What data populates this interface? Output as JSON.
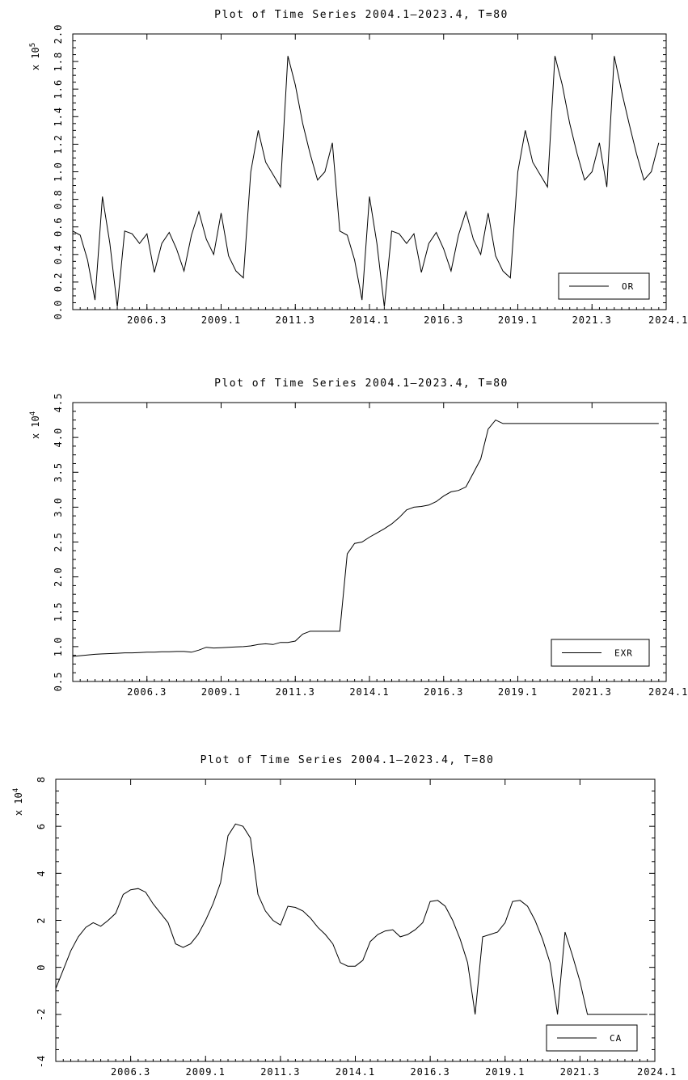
{
  "chart_data": [
    {
      "type": "line",
      "title": "Plot of Time Series 2004.1—2023.4, T=80",
      "y_multiplier_label": "x 10",
      "y_multiplier_exp": "5",
      "x_tick_labels": [
        "2006.3",
        "2009.1",
        "2011.3",
        "2014.1",
        "2016.3",
        "2019.1",
        "2021.3",
        "2024.1"
      ],
      "x_tick_values": [
        11,
        21,
        31,
        41,
        51,
        61,
        71,
        81
      ],
      "xlim": [
        1,
        81
      ],
      "ylim": [
        0.0,
        2.0
      ],
      "y_tick_values": [
        0.0,
        0.2,
        0.4,
        0.6,
        0.8,
        1.0,
        1.2,
        1.4,
        1.6,
        1.8,
        2.0
      ],
      "y_tick_labels": [
        "0.0",
        "0.2",
        "0.4",
        "0.6",
        "0.8",
        "1.0",
        "1.2",
        "1.4",
        "1.6",
        "1.8",
        "2.0"
      ],
      "legend": "bottom-right",
      "series": [
        {
          "name": "OR",
          "x": [
            1,
            2,
            3,
            4,
            5,
            6,
            7,
            8,
            9,
            10,
            11,
            12,
            13,
            14,
            15,
            16,
            17,
            18,
            19,
            20,
            21,
            22,
            23,
            24,
            25,
            26,
            27,
            28,
            29,
            30,
            31,
            32,
            33,
            34,
            35,
            36,
            37,
            38,
            39,
            40,
            41,
            42,
            43,
            44,
            45,
            46,
            47,
            48,
            49,
            50,
            51,
            52,
            53,
            54,
            55,
            56,
            57,
            58,
            59,
            60,
            61,
            62,
            63,
            64,
            65,
            66,
            67,
            68,
            69,
            70,
            71,
            72,
            73,
            74,
            75,
            76,
            77,
            78,
            79,
            80
          ],
          "values": [
            0.57,
            0.54,
            0.36,
            0.07,
            0.82,
            0.48,
            0.02,
            0.57,
            0.55,
            0.48,
            0.55,
            0.27,
            0.48,
            0.56,
            0.44,
            0.28,
            0.54,
            0.71,
            0.51,
            0.4,
            0.7,
            0.39,
            0.28,
            0.23,
            1.0,
            1.3,
            1.07,
            0.98,
            0.89,
            1.84,
            1.63,
            1.35,
            1.13,
            0.94,
            1.0,
            1.21,
            0.57,
            0.54,
            0.36,
            0.07,
            0.82,
            0.48,
            0.02,
            0.57,
            0.55,
            0.48,
            0.55,
            0.27,
            0.48,
            0.56,
            0.44,
            0.28,
            0.54,
            0.71,
            0.51,
            0.4,
            0.7,
            0.39,
            0.28,
            0.23,
            1.0,
            1.3,
            1.07,
            0.98,
            0.89,
            1.84,
            1.63,
            1.35,
            1.13,
            0.94,
            1.0,
            1.21,
            0.89,
            1.84,
            1.58,
            1.35,
            1.13,
            0.94,
            1.0,
            1.21
          ]
        }
      ]
    },
    {
      "type": "line",
      "title": "Plot of Time Series 2004.1—2023.4, T=80",
      "y_multiplier_label": "x 10",
      "y_multiplier_exp": "4",
      "x_tick_labels": [
        "2006.3",
        "2009.1",
        "2011.3",
        "2014.1",
        "2016.3",
        "2019.1",
        "2021.3",
        "2024.1"
      ],
      "x_tick_values": [
        11,
        21,
        31,
        41,
        51,
        61,
        71,
        81
      ],
      "xlim": [
        1,
        81
      ],
      "ylim": [
        0.5,
        4.5
      ],
      "y_tick_values": [
        0.5,
        1.0,
        1.5,
        2.0,
        2.5,
        3.0,
        3.5,
        4.0,
        4.5
      ],
      "y_tick_labels": [
        "0.5",
        "1.0",
        "1.5",
        "2.0",
        "2.5",
        "3.0",
        "3.5",
        "4.0",
        "4.5"
      ],
      "legend": "bottom-right",
      "series": [
        {
          "name": "EXR",
          "x": [
            1,
            2,
            3,
            4,
            5,
            6,
            7,
            8,
            9,
            10,
            11,
            12,
            13,
            14,
            15,
            16,
            17,
            18,
            19,
            20,
            21,
            22,
            23,
            24,
            25,
            26,
            27,
            28,
            29,
            30,
            31,
            32,
            33,
            34,
            35,
            36,
            37,
            38,
            39,
            40,
            41,
            42,
            43,
            44,
            45,
            46,
            47,
            48,
            49,
            50,
            51,
            52,
            53,
            54,
            55,
            56,
            57,
            58,
            59,
            60,
            61,
            62,
            63,
            64,
            65,
            66,
            67,
            68,
            69,
            70,
            71,
            72,
            73,
            74,
            75,
            76,
            77,
            78,
            79,
            80
          ],
          "values": [
            0.86,
            0.87,
            0.88,
            0.89,
            0.895,
            0.9,
            0.905,
            0.91,
            0.91,
            0.915,
            0.92,
            0.92,
            0.925,
            0.925,
            0.93,
            0.93,
            0.92,
            0.95,
            0.99,
            0.98,
            0.985,
            0.99,
            0.995,
            1.0,
            1.01,
            1.03,
            1.04,
            1.03,
            1.06,
            1.06,
            1.08,
            1.18,
            1.22,
            1.22,
            1.22,
            1.22,
            1.22,
            2.33,
            2.48,
            2.5,
            2.57,
            2.63,
            2.69,
            2.76,
            2.85,
            2.96,
            3.0,
            3.01,
            3.03,
            3.08,
            3.16,
            3.22,
            3.24,
            3.29,
            3.49,
            3.69,
            4.12,
            4.25,
            4.2,
            4.2,
            4.2,
            4.2,
            4.2,
            4.2,
            4.2,
            4.2,
            4.2,
            4.2,
            4.2,
            4.2,
            4.2,
            4.2,
            4.2,
            4.2,
            4.2,
            4.2,
            4.2,
            4.2,
            4.2,
            4.2
          ]
        }
      ]
    },
    {
      "type": "line",
      "title": "Plot of Time Series 2004.1—2023.4, T=80",
      "y_multiplier_label": "x 10",
      "y_multiplier_exp": "4",
      "x_tick_labels": [
        "2006.3",
        "2009.1",
        "2011.3",
        "2014.1",
        "2016.3",
        "2019.1",
        "2021.3",
        "2024.1"
      ],
      "x_tick_values": [
        11,
        21,
        31,
        41,
        51,
        61,
        71,
        81
      ],
      "xlim": [
        1,
        81
      ],
      "ylim": [
        -4,
        8
      ],
      "y_tick_values": [
        -4,
        -2,
        0,
        2,
        4,
        6,
        8
      ],
      "y_tick_labels": [
        "-4",
        "-2",
        "0",
        "2",
        "4",
        "6",
        "8"
      ],
      "legend": "bottom-right",
      "series": [
        {
          "name": "CA",
          "x": [
            1,
            2,
            3,
            4,
            5,
            6,
            7,
            8,
            9,
            10,
            11,
            12,
            13,
            14,
            15,
            16,
            17,
            18,
            19,
            20,
            21,
            22,
            23,
            24,
            25,
            26,
            27,
            28,
            29,
            30,
            31,
            32,
            33,
            34,
            35,
            36,
            37,
            38,
            39,
            40,
            41,
            42,
            43,
            44,
            45,
            46,
            47,
            48,
            49,
            50,
            51,
            52,
            53,
            54,
            55,
            56,
            57,
            58,
            59,
            60,
            61,
            62,
            63,
            64,
            65,
            66,
            67,
            68,
            69,
            70,
            71,
            72,
            73,
            74,
            75,
            76,
            77,
            78,
            79,
            80
          ],
          "values": [
            -0.9,
            -0.1,
            0.7,
            1.3,
            1.7,
            1.9,
            1.75,
            2.0,
            2.3,
            3.1,
            3.3,
            3.35,
            3.2,
            2.7,
            2.3,
            1.9,
            1.0,
            0.85,
            1.0,
            1.4,
            2.0,
            2.7,
            3.6,
            5.6,
            6.1,
            6.0,
            5.5,
            3.1,
            2.4,
            2.0,
            1.8,
            2.6,
            2.55,
            2.4,
            2.1,
            1.7,
            1.4,
            1.0,
            0.2,
            0.05,
            0.05,
            0.3,
            1.1,
            1.4,
            1.55,
            1.6,
            1.3,
            1.4,
            1.6,
            1.9,
            2.8,
            2.85,
            2.6,
            2.0,
            1.2,
            0.2,
            -2.0,
            1.3,
            1.4,
            1.5,
            1.9,
            2.8,
            2.85,
            2.6,
            2.0,
            1.2,
            0.2,
            -2.0,
            1.5,
            0.5,
            -0.6,
            -2.0,
            -2.0,
            -2.0,
            -2.0,
            -2.0,
            -2.0,
            -2.0,
            -2.0,
            -2.0
          ]
        }
      ]
    }
  ]
}
